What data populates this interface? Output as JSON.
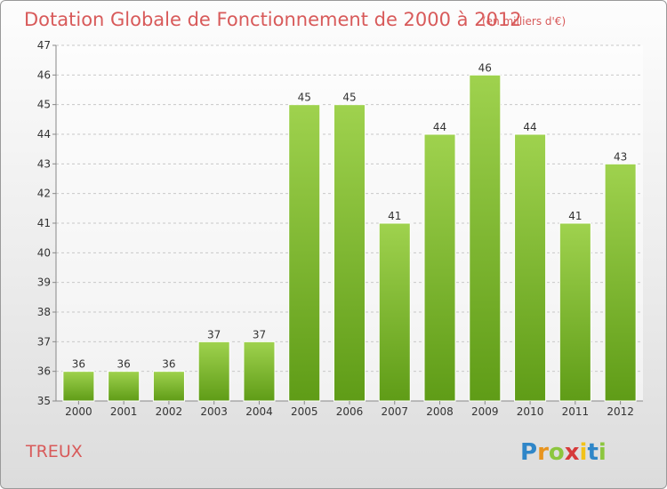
{
  "chart_data": {
    "type": "bar",
    "title": "Dotation Globale de Fonctionnement de 2000 à 2012",
    "subtitle": "(en milliers d'€)",
    "categories": [
      "2000",
      "2001",
      "2002",
      "2003",
      "2004",
      "2005",
      "2006",
      "2007",
      "2008",
      "2009",
      "2010",
      "2011",
      "2012"
    ],
    "values": [
      36,
      36,
      36,
      37,
      37,
      45,
      45,
      41,
      44,
      46,
      44,
      41,
      43
    ],
    "data_labels": [
      "36",
      "36",
      "36",
      "37",
      "37",
      "45",
      "45",
      "41",
      "44",
      "46",
      "44",
      "41",
      "43"
    ],
    "y_ticks": [
      "35",
      "36",
      "37",
      "38",
      "39",
      "40",
      "41",
      "42",
      "43",
      "44",
      "45",
      "46",
      "47"
    ],
    "ylim": [
      35,
      47
    ],
    "grid": true,
    "bar_colors": {
      "top": "#9fd24e",
      "bottom": "#5f9c17"
    },
    "place": "TREUX"
  },
  "logo": {
    "letters": [
      "P",
      "r",
      "o",
      "x",
      "i",
      "t",
      "i"
    ],
    "colors": [
      "#2f86c8",
      "#e8941e",
      "#8cc63e",
      "#d63a3a",
      "#f2c218",
      "#2f86c8",
      "#8cc63e"
    ]
  }
}
